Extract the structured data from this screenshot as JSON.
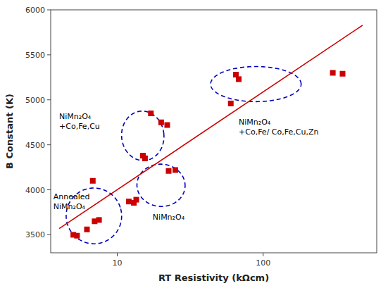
{
  "chart_data": {
    "type": "scatter",
    "xlabel": "RT Resistivity (kΩcm)",
    "ylabel": "B Constant (K)",
    "log": "x",
    "xlim": [
      3.5,
      600
    ],
    "ylim": [
      3300,
      6000
    ],
    "xticks": [
      10,
      100
    ],
    "yticks": [
      3500,
      4000,
      4500,
      5000,
      5500,
      6000
    ],
    "x": [
      5.0,
      5.3,
      6.2,
      7.0,
      7.5,
      6.8,
      12.0,
      13.0,
      13.5,
      15.0,
      15.5,
      17.0,
      20.0,
      22.0,
      22.5,
      25.0,
      60.0,
      65.0,
      68.0,
      300.0,
      350.0
    ],
    "values": [
      3500,
      3490,
      3560,
      3650,
      3665,
      4100,
      3870,
      3855,
      3890,
      4380,
      4350,
      4850,
      4750,
      4720,
      4210,
      4220,
      4960,
      5280,
      5230,
      5300,
      5290
    ],
    "color": "#cc0000",
    "marker": "square",
    "trendline": {
      "x": [
        4.0,
        480
      ],
      "values": [
        3568.39,
        5829.19
      ],
      "color": "#cc0000"
    },
    "ellipses": [
      {
        "cx_log": 0.84,
        "cy": 3710,
        "rx_log": 0.19,
        "ry": 310,
        "angle_deg": 18,
        "color": "#0000bb",
        "line_style": "dashed"
      },
      {
        "cx_log": 1.175,
        "cy": 4600,
        "rx_log": 0.145,
        "ry": 275,
        "angle_deg": 5,
        "color": "#0000bb",
        "line_style": "dashed"
      },
      {
        "cx_log": 1.3,
        "cy": 4050,
        "rx_log": 0.165,
        "ry": 235,
        "angle_deg": -3,
        "color": "#0000bb",
        "line_style": "dashed"
      },
      {
        "cx_log": 1.95,
        "cy": 5175,
        "rx_log": 0.31,
        "ry": 195,
        "angle_deg": 0,
        "color": "#0000bb",
        "line_style": "dashed"
      }
    ],
    "annotations": [
      {
        "text": "Annealed\nNiMn₂O₄",
        "x": 3.65,
        "y": 3870
      },
      {
        "text": "NiMn₂O₄\n+Co,Fe,Cu",
        "x": 4.0,
        "y": 4760
      },
      {
        "text": "NiMn₂O₄",
        "x": 17.5,
        "y": 3700
      },
      {
        "text": "NiMn₂O₄\n+Co,Fe/ Co,Fe,Cu,Zn",
        "x": 68.0,
        "y": 4700
      }
    ]
  }
}
